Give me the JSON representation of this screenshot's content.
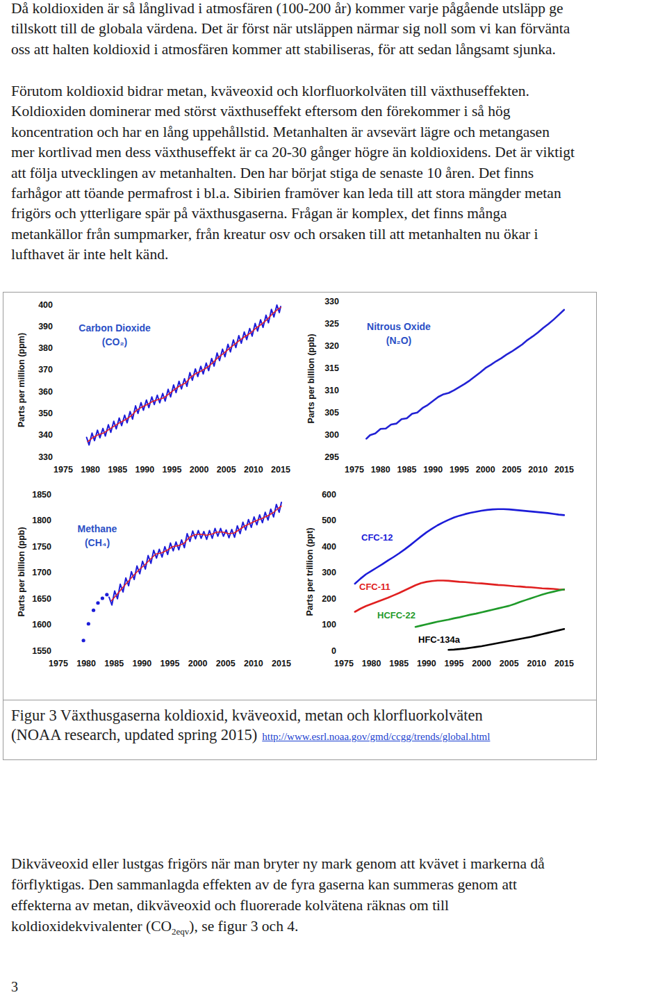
{
  "paragraphs": [
    {
      "lines": [
        "Då koldioxiden är så långlivad i atmosfären (100-200 år) kommer varje pågående utsläpp ge",
        "tillskott till de globala värdena. Det är först när utsläppen närmar sig noll som vi kan förvänta",
        "oss att halten koldioxid i atmosfären kommer att stabiliseras, för att sedan långsamt sjunka."
      ]
    },
    {
      "lines": [
        "Förutom koldioxid bidrar metan, kväveoxid och klorfluorkolväten till växthuseffekten.",
        "Koldioxiden dominerar med störst växthuseffekt eftersom den förekommer i så hög",
        "koncentration och har en lång uppehållstid. Metanhalten är avsevärt lägre och metangasen",
        "mer kortlivad men dess växthuseffekt är ca 20-30 gånger högre än koldioxidens. Det är viktigt",
        "att följa utvecklingen av metanhalten. Den har börjat stiga de senaste 10 åren. Det finns",
        "farhågor att töande permafrost i bl.a. Sibirien framöver kan leda till att stora mängder metan",
        "frigörs och ytterligare spär på växthusgaserna. Frågan är komplex, det finns många",
        "metankällor från sumpmarker, från kreatur osv och orsaken till att metanhalten nu ökar i",
        "lufthavet är inte helt känd."
      ]
    },
    {
      "lines": [
        "Dikväveoxid eller lustgas frigörs när man bryter ny mark genom att kvävet i markerna då",
        "förflyktigas. Den sammanlagda effekten av de fyra gaserna kan summeras genom att",
        "effekterna av metan, dikväveoxid och fluorerade kolvätena räknas om till",
        [
          {
            "text": "koldioxidekvivalenter (CO"
          },
          {
            "text": "2eqv",
            "sub": true
          },
          {
            "text": "), se figur 3 och 4."
          }
        ]
      ]
    }
  ],
  "figure": {
    "caption_lines": [
      "Figur 3 Växthusgaserna koldioxid, kväveoxid, metan och klorfluorkolväten",
      "(NOAA research, updated spring 2015)"
    ],
    "link": "http://www.esrl.noaa.gov/gmd/ccgg/trends/global.html"
  },
  "page_number": "3",
  "chart_data": [
    {
      "type": "line",
      "title": "Carbon Dioxide (CO₂)",
      "ylabel": "Parts per million (ppm)",
      "xlim": [
        1975,
        2015
      ],
      "xticks": [
        1975,
        1980,
        1985,
        1990,
        1995,
        2000,
        2005,
        2010,
        2015
      ],
      "ylim": [
        330,
        400
      ],
      "yticks": [
        330,
        340,
        350,
        360,
        370,
        380,
        390,
        400
      ],
      "grid": false,
      "series": [
        {
          "color": "#1c1cd8",
          "x": [
            1979.3,
            1979.75,
            1980.3,
            1980.75,
            1981.3,
            1981.75,
            1982.3,
            1982.75,
            1983.3,
            1983.75,
            1984.3,
            1984.75,
            1985.3,
            1985.75,
            1986.3,
            1986.75,
            1987.3,
            1987.75,
            1988.3,
            1988.75,
            1989.3,
            1989.75,
            1990.3,
            1990.75,
            1991.3,
            1991.75,
            1992.3,
            1992.75,
            1993.3,
            1993.75,
            1994.3,
            1994.75,
            1995.3,
            1995.75,
            1996.3,
            1996.75,
            1997.3,
            1997.75,
            1998.3,
            1998.75,
            1999.3,
            1999.75,
            2000.3,
            2000.75,
            2001.3,
            2001.75,
            2002.3,
            2002.75,
            2003.3,
            2003.75,
            2004.3,
            2004.75,
            2005.3,
            2005.75,
            2006.3,
            2006.75,
            2007.3,
            2007.75,
            2008.3,
            2008.75,
            2009.3,
            2009.75,
            2010.3,
            2010.75,
            2011.3,
            2011.75,
            2012.3,
            2012.75,
            2013.3,
            2013.75,
            2014.3,
            2014.75,
            2015.0
          ],
          "values": [
            338.8,
            335.3,
            340.8,
            337.3,
            342.1,
            338.6,
            342.9,
            339.4,
            344.6,
            341.1,
            346.2,
            342.7,
            347.7,
            344.2,
            349.0,
            345.5,
            350.7,
            347.2,
            353.3,
            349.8,
            354.8,
            351.3,
            356.0,
            352.5,
            357.4,
            353.9,
            358.2,
            354.7,
            359.0,
            355.5,
            360.9,
            357.4,
            362.9,
            359.4,
            364.6,
            361.1,
            365.8,
            362.3,
            368.6,
            365.1,
            370.3,
            366.8,
            371.5,
            368.0,
            373.0,
            369.5,
            375.1,
            371.6,
            377.6,
            374.1,
            379.4,
            375.9,
            381.6,
            378.1,
            383.6,
            380.1,
            385.6,
            382.1,
            387.3,
            383.8,
            388.9,
            385.4,
            391.2,
            387.7,
            392.9,
            389.4,
            395.0,
            391.5,
            397.7,
            394.2,
            399.7,
            396.2,
            399.0
          ]
        },
        {
          "color": "#e3202a",
          "x": [
            1979.5,
            1980.5,
            1981.5,
            1982.5,
            1983.5,
            1984.5,
            1985.5,
            1986.5,
            1987.5,
            1988.5,
            1989.5,
            1990.5,
            1991.5,
            1992.5,
            1993.5,
            1994.5,
            1995.5,
            1996.5,
            1997.5,
            1998.5,
            1999.5,
            2000.5,
            2001.5,
            2002.5,
            2003.5,
            2004.5,
            2005.5,
            2006.5,
            2007.5,
            2008.5,
            2009.5,
            2010.5,
            2011.5,
            2012.5,
            2013.5,
            2014.5,
            2015.0
          ],
          "values": [
            336.8,
            338.8,
            340.1,
            340.9,
            342.6,
            344.2,
            345.7,
            347.0,
            348.7,
            351.3,
            352.8,
            354.0,
            355.4,
            356.2,
            357.0,
            358.9,
            360.9,
            362.6,
            363.8,
            366.6,
            368.3,
            369.5,
            371.0,
            373.1,
            375.6,
            377.4,
            379.6,
            381.6,
            383.6,
            385.3,
            386.9,
            389.2,
            390.9,
            393.0,
            395.7,
            397.7,
            398.6
          ]
        }
      ]
    },
    {
      "type": "line",
      "title": "Nitrous Oxide (N₂O)",
      "ylabel": "Parts per billion (ppb)",
      "xlim": [
        1975,
        2015
      ],
      "xticks": [
        1975,
        1980,
        1985,
        1990,
        1995,
        2000,
        2005,
        2010,
        2015
      ],
      "ylim": [
        295,
        330
      ],
      "yticks": [
        295,
        300,
        305,
        310,
        315,
        320,
        325,
        330
      ],
      "grid": false,
      "series": [
        {
          "color": "#2222d4",
          "x": [
            1977.3,
            1978,
            1979,
            1980,
            1981,
            1982,
            1983,
            1984,
            1985,
            1986,
            1987,
            1988,
            1989,
            1990,
            1991,
            1992,
            1993,
            1994,
            1995,
            1996,
            1997,
            1998,
            1999,
            2000,
            2001,
            2002,
            2003,
            2004,
            2005,
            2006,
            2007,
            2008,
            2009,
            2010,
            2011,
            2012,
            2013,
            2014,
            2015
          ],
          "values": [
            299.0,
            299.8,
            300.2,
            301.2,
            301.3,
            302.2,
            302.4,
            303.4,
            303.6,
            304.6,
            304.9,
            305.9,
            306.6,
            307.5,
            308.4,
            309.0,
            309.3,
            309.9,
            310.6,
            311.3,
            312.1,
            313.0,
            313.9,
            314.9,
            315.6,
            316.4,
            317.1,
            317.9,
            318.6,
            319.4,
            320.2,
            321.2,
            322.0,
            322.9,
            323.9,
            324.8,
            325.8,
            326.9,
            328.0
          ]
        }
      ]
    },
    {
      "type": "line",
      "title": "Methane (CH₄)",
      "ylabel": "Parts per billion (ppb)",
      "xlim": [
        1975,
        2015
      ],
      "xticks": [
        1975,
        1980,
        1985,
        1990,
        1995,
        2000,
        2005,
        2010,
        2015
      ],
      "ylim": [
        1550,
        1850
      ],
      "yticks": [
        1550,
        1600,
        1650,
        1700,
        1750,
        1800,
        1850
      ],
      "grid": false,
      "series": [
        {
          "color": "#1c1cd8",
          "x": [
            1984.1,
            1984.6,
            1985.1,
            1985.6,
            1986.1,
            1986.6,
            1987.1,
            1987.6,
            1988.1,
            1988.6,
            1989.1,
            1989.6,
            1990.1,
            1990.6,
            1991.1,
            1991.6,
            1992.1,
            1992.6,
            1993.1,
            1993.6,
            1994.1,
            1994.6,
            1995.1,
            1995.6,
            1996.1,
            1996.6,
            1997.1,
            1997.6,
            1998.1,
            1998.6,
            1999.1,
            1999.6,
            2000.1,
            2000.6,
            2001.1,
            2001.6,
            2002.1,
            2002.6,
            2003.1,
            2003.6,
            2004.1,
            2004.6,
            2005.1,
            2005.6,
            2006.1,
            2006.6,
            2007.1,
            2007.6,
            2008.1,
            2008.6,
            2009.1,
            2009.6,
            2010.1,
            2010.6,
            2011.1,
            2011.6,
            2012.1,
            2012.6,
            2013.1,
            2013.6,
            2014.1,
            2014.6,
            2015.0
          ],
          "values": [
            1652,
            1637,
            1664,
            1649,
            1677,
            1662,
            1689,
            1674,
            1701,
            1686,
            1712,
            1697,
            1721,
            1706,
            1732,
            1717,
            1742,
            1727,
            1744,
            1729,
            1749,
            1734,
            1756,
            1741,
            1758,
            1743,
            1762,
            1747,
            1774,
            1759,
            1779,
            1764,
            1780,
            1765,
            1778,
            1763,
            1780,
            1765,
            1784,
            1769,
            1784,
            1769,
            1781,
            1766,
            1782,
            1767,
            1789,
            1774,
            1796,
            1781,
            1801,
            1786,
            1806,
            1791,
            1810,
            1795,
            1815,
            1800,
            1821,
            1806,
            1830,
            1815,
            1834
          ]
        },
        {
          "color": "#e3202a",
          "x": [
            1984.5,
            1985.5,
            1986.5,
            1987.5,
            1988.5,
            1989.5,
            1990.5,
            1991.5,
            1992.5,
            1993.5,
            1994.5,
            1995.5,
            1996.5,
            1997.5,
            1998.5,
            1999.5,
            2000.5,
            2001.5,
            2002.5,
            2003.5,
            2004.5,
            2005.5,
            2006.5,
            2007.5,
            2008.5,
            2009.5,
            2010.5,
            2011.5,
            2012.5,
            2013.5,
            2014.5,
            2015.0
          ],
          "values": [
            1645,
            1657,
            1670,
            1682,
            1694,
            1705,
            1714,
            1725,
            1735,
            1737,
            1742,
            1749,
            1751,
            1755,
            1767,
            1772,
            1773,
            1771,
            1773,
            1777,
            1777,
            1774,
            1775,
            1782,
            1789,
            1794,
            1799,
            1803,
            1808,
            1814,
            1823,
            1827
          ]
        },
        {
          "type": "scatter",
          "marker": "circle",
          "color": "#1c1cd8",
          "x": [
            1979.5,
            1980.4,
            1981.3,
            1982.1,
            1982.9,
            1983.7
          ],
          "values": [
            1569,
            1601,
            1627,
            1641,
            1650,
            1657
          ]
        }
      ]
    },
    {
      "type": "line",
      "ylabel": "Parts per trillion (ppt)",
      "xlim": [
        1975,
        2015
      ],
      "xticks": [
        1975,
        1980,
        1985,
        1990,
        1995,
        2000,
        2005,
        2010,
        2015
      ],
      "ylim": [
        0,
        600
      ],
      "yticks": [
        0,
        100,
        200,
        300,
        400,
        500,
        600
      ],
      "grid": false,
      "series": [
        {
          "name": "CFC-12",
          "color": "#1c1cd8",
          "x": [
            1977,
            1978,
            1979,
            1980,
            1981,
            1982,
            1983,
            1984,
            1985,
            1986,
            1987,
            1988,
            1989,
            1990,
            1991,
            1992,
            1993,
            1994,
            1995,
            1996,
            1997,
            1998,
            1999,
            2000,
            2001,
            2002,
            2003,
            2004,
            2005,
            2006,
            2007,
            2008,
            2009,
            2010,
            2011,
            2012,
            2013,
            2014,
            2015
          ],
          "values": [
            256,
            275,
            292,
            305,
            318,
            331,
            345,
            358,
            372,
            387,
            403,
            420,
            437,
            453,
            467,
            480,
            491,
            501,
            510,
            517,
            523,
            528,
            532,
            536,
            539,
            541,
            542,
            542,
            541,
            539,
            537,
            535,
            533,
            531,
            529,
            527,
            524,
            521,
            519
          ]
        },
        {
          "name": "CFC-11",
          "color": "#e02020",
          "x": [
            1977,
            1978,
            1979,
            1980,
            1981,
            1982,
            1983,
            1984,
            1985,
            1986,
            1987,
            1988,
            1989,
            1990,
            1991,
            1992,
            1993,
            1994,
            1995,
            1996,
            1997,
            1998,
            1999,
            2000,
            2001,
            2002,
            2003,
            2004,
            2005,
            2006,
            2007,
            2008,
            2009,
            2010,
            2011,
            2012,
            2013,
            2014,
            2015
          ],
          "values": [
            148,
            160,
            170,
            178,
            186,
            194,
            202,
            211,
            220,
            230,
            240,
            250,
            258,
            263,
            266,
            268,
            268,
            267,
            265,
            263,
            262,
            260,
            258,
            257,
            255,
            253,
            251,
            250,
            248,
            246,
            245,
            243,
            242,
            240,
            238,
            237,
            236,
            234,
            233
          ]
        },
        {
          "name": "HCFC-22",
          "color": "#1f9a2a",
          "x": [
            1988,
            1989,
            1990,
            1991,
            1992,
            1993,
            1994,
            1995,
            1996,
            1997,
            1998,
            1999,
            2000,
            2001,
            2002,
            2003,
            2004,
            2005,
            2006,
            2007,
            2008,
            2009,
            2010,
            2011,
            2012,
            2013,
            2014,
            2015
          ],
          "values": [
            90,
            95,
            100,
            105,
            110,
            114,
            118,
            123,
            127,
            132,
            137,
            141,
            146,
            151,
            156,
            161,
            166,
            171,
            178,
            186,
            193,
            200,
            207,
            214,
            220,
            225,
            230,
            234
          ]
        },
        {
          "name": "HFC-134a",
          "color": "#000000",
          "x": [
            1994,
            1995,
            1996,
            1997,
            1998,
            1999,
            2000,
            2001,
            2002,
            2003,
            2004,
            2005,
            2006,
            2007,
            2008,
            2009,
            2010,
            2011,
            2012,
            2013,
            2014,
            2015
          ],
          "values": [
            2,
            3,
            5,
            7,
            10,
            13,
            16,
            20,
            24,
            28,
            32,
            36,
            40,
            44,
            48,
            52,
            57,
            62,
            67,
            72,
            77,
            82
          ]
        }
      ]
    }
  ]
}
